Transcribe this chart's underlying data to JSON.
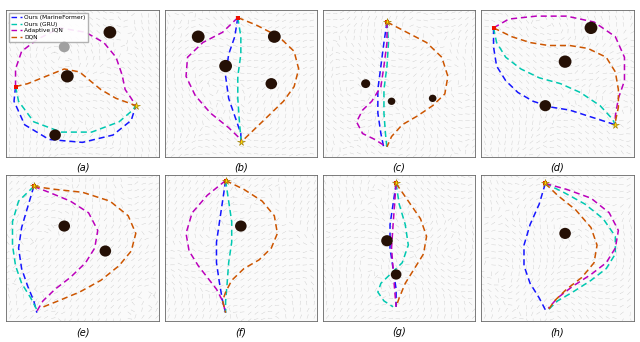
{
  "legend_labels": [
    "Ours (MarineFormer)",
    "Ours (GRU)",
    "Adaptive IQN",
    "DQN"
  ],
  "legend_colors": [
    "#1515FF",
    "#00C8B0",
    "#BB00BB",
    "#CC5500"
  ],
  "subplot_labels": [
    "(a)",
    "(b)",
    "(c)",
    "(d)",
    "(e)",
    "(f)",
    "(g)",
    "(h)"
  ],
  "bg_color": "#FAFAFA",
  "arrow_color": "#B0B0B0",
  "obstacle_color": "#251005",
  "waypoint_color": "#FFD700",
  "start_color": "#EE1100",
  "gray_obs_color": "#A0A0A0"
}
